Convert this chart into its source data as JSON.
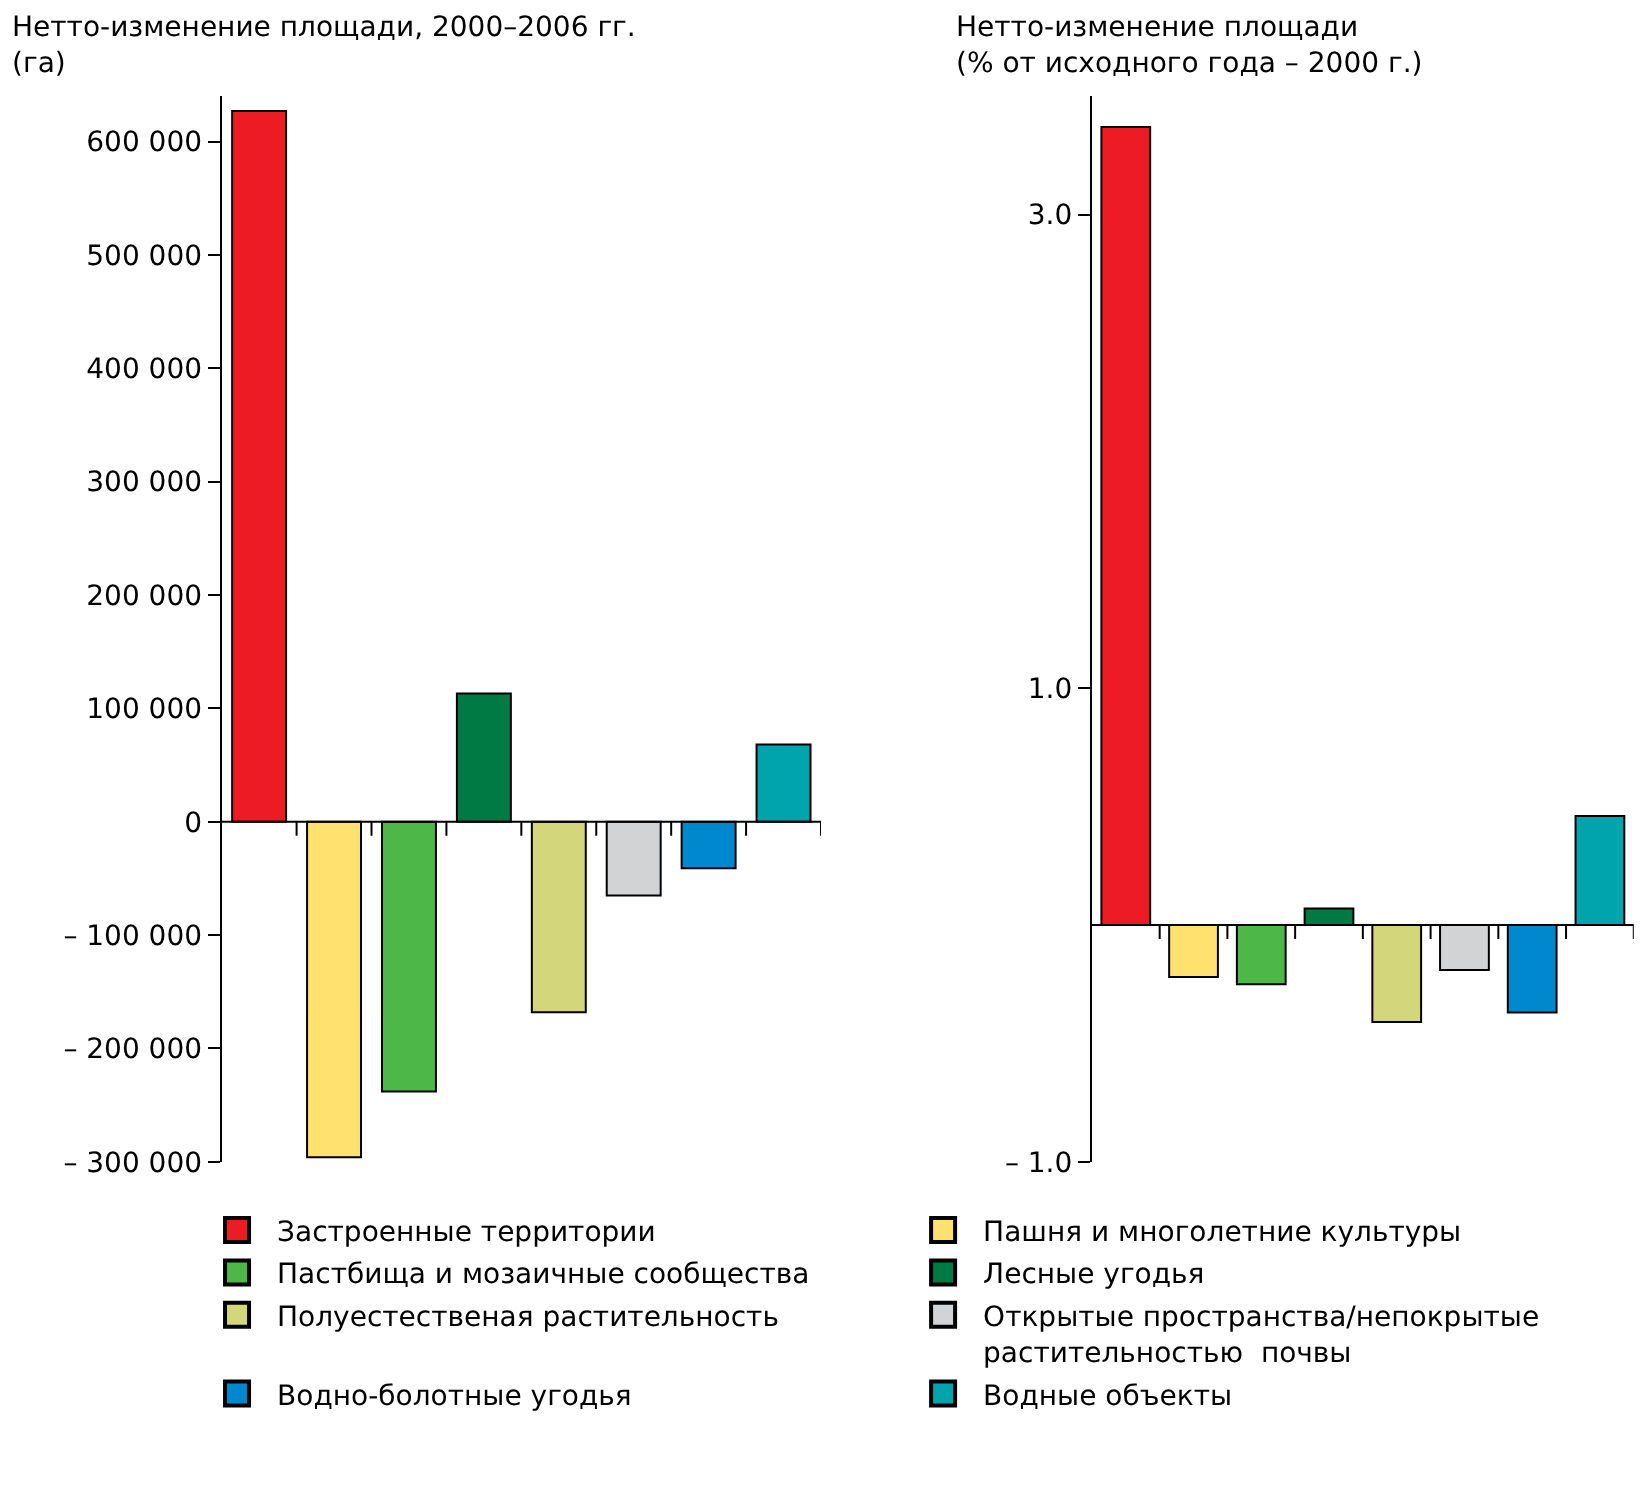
{
  "chart_data": [
    {
      "type": "bar",
      "title": "Нетто-изменение площади, 2000–2006 гг.\n(га)",
      "categories": [
        null,
        null,
        null,
        null,
        null,
        null,
        null,
        null
      ],
      "series": [
        {
          "name": "Застроенные территории",
          "color": "#ed1c24",
          "values": [
            627000,
            null,
            null,
            null,
            null,
            null,
            null,
            null
          ]
        },
        {
          "name": "Пашня и многолетние культуры",
          "color": "#ffe170",
          "values": [
            null,
            -296000,
            null,
            null,
            null,
            null,
            null,
            null
          ]
        },
        {
          "name": "Пастбища и мозаичные сообщества",
          "color": "#4db848",
          "values": [
            null,
            null,
            -238000,
            null,
            null,
            null,
            null,
            null
          ]
        },
        {
          "name": "Лесные угодья",
          "color": "#007a45",
          "values": [
            null,
            null,
            null,
            113000,
            null,
            null,
            null,
            null
          ]
        },
        {
          "name": "Полуестественая растительность",
          "color": "#d3d67a",
          "values": [
            null,
            null,
            null,
            null,
            -168000,
            null,
            null,
            null
          ]
        },
        {
          "name": "Открытые пространства/непокрытые\nрастительностью  почвы",
          "color": "#d1d3d4",
          "values": [
            null,
            null,
            null,
            null,
            null,
            -65000,
            null,
            null
          ]
        },
        {
          "name": "Водно-болотные угодья",
          "color": "#0088cf",
          "values": [
            null,
            null,
            null,
            null,
            null,
            null,
            -41000,
            null
          ]
        },
        {
          "name": "Водные объекты",
          "color": "#00a4ad",
          "values": [
            null,
            null,
            null,
            null,
            null,
            null,
            null,
            68000
          ]
        }
      ],
      "ylim": [
        -300000,
        640000
      ],
      "yticks": [
        {
          "value": 600000,
          "label": "600 000"
        },
        {
          "value": 500000,
          "label": "500 000"
        },
        {
          "value": 400000,
          "label": "400 000"
        },
        {
          "value": 300000,
          "label": "300 000"
        },
        {
          "value": 200000,
          "label": "200 000"
        },
        {
          "value": 100000,
          "label": "100 000"
        },
        {
          "value": 0,
          "label": "0"
        },
        {
          "value": -100000,
          "label": "– 100 000"
        },
        {
          "value": -200000,
          "label": "– 200 000"
        },
        {
          "value": -300000,
          "label": "– 300 000"
        }
      ],
      "tick_labels": "y",
      "legend": "bottom"
    },
    {
      "type": "bar",
      "title": "Нетто-изменение площади\n(% от исходного года – 2000 г.)",
      "categories": [
        null,
        null,
        null,
        null,
        null,
        null,
        null,
        null
      ],
      "series": [
        {
          "color": "#ed1c24",
          "values": [
            3.37,
            null,
            null,
            null,
            null,
            null,
            null,
            null
          ]
        },
        {
          "color": "#ffe170",
          "values": [
            null,
            -0.22,
            null,
            null,
            null,
            null,
            null,
            null
          ]
        },
        {
          "color": "#4db848",
          "values": [
            null,
            null,
            -0.25,
            null,
            null,
            null,
            null,
            null
          ]
        },
        {
          "color": "#007a45",
          "values": [
            null,
            null,
            null,
            0.07,
            null,
            null,
            null,
            null
          ]
        },
        {
          "color": "#d3d67a",
          "values": [
            null,
            null,
            null,
            null,
            -0.41,
            null,
            null,
            null
          ]
        },
        {
          "color": "#d1d3d4",
          "values": [
            null,
            null,
            null,
            null,
            null,
            -0.19,
            null,
            null
          ]
        },
        {
          "color": "#0088cf",
          "values": [
            null,
            null,
            null,
            null,
            null,
            null,
            -0.37,
            null
          ]
        },
        {
          "color": "#00a4ad",
          "values": [
            null,
            null,
            null,
            null,
            null,
            null,
            null,
            0.46
          ]
        }
      ],
      "ylim": [
        -1.0,
        3.5
      ],
      "yticks": [
        {
          "value": 3.0,
          "label": "3.0"
        },
        {
          "value": 1.0,
          "label": "1.0"
        },
        {
          "value": -1.0,
          "label": "– 1.0"
        }
      ],
      "tick_labels": "y"
    }
  ]
}
